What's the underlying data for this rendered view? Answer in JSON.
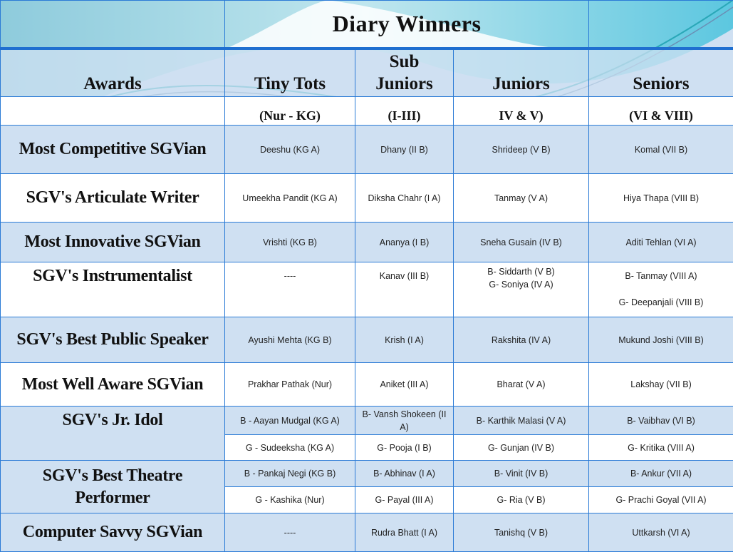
{
  "title": "Diary Winners",
  "colors": {
    "row_alt": "#cfe0f2",
    "border": "#2b7bd6",
    "wave": "#5cc7e0"
  },
  "headers": {
    "awards": "Awards",
    "tiny_tots": "Tiny Tots",
    "sub_juniors_1": "Sub",
    "sub_juniors_2": "Juniors",
    "juniors": "Juniors",
    "seniors": "Seniors"
  },
  "classes": {
    "tiny_tots": "(Nur - KG)",
    "sub_juniors": "(I-III)",
    "juniors": "IV & V)",
    "seniors": "(VI & VIII)"
  },
  "rows": [
    {
      "award": "Most Competitive SGVian",
      "tiny": "Deeshu (KG A)",
      "sub": "Dhany (II B)",
      "jun": "Shrideep (V B)",
      "sen": "Komal (VII B)"
    },
    {
      "award": "SGV's Articulate Writer",
      "tiny": "Umeekha Pandit (KG A)",
      "sub": "Diksha Chahr (I A)",
      "jun": "Tanmay (V A)",
      "sen": "Hiya Thapa (VIII B)"
    },
    {
      "award": "Most Innovative SGVian",
      "tiny": "Vrishti (KG B)",
      "sub": "Ananya (I B)",
      "jun": "Sneha Gusain (IV B)",
      "sen": "Aditi Tehlan (VI A)"
    },
    {
      "award": "SGV's Instrumentalist",
      "tiny": "----",
      "sub": "Kanav (III B)",
      "jun": "B- Siddarth (V B)",
      "jun2": "G- Soniya (IV A)",
      "sen": "B- Tanmay (VIII A)",
      "sen2": "G- Deepanjali (VIII B)"
    },
    {
      "award": "SGV's Best Public Speaker",
      "tiny": "Ayushi Mehta (KG B)",
      "sub": "Krish (I A)",
      "jun": "Rakshita (IV A)",
      "sen": "Mukund Joshi (VIII B)"
    },
    {
      "award": "Most Well Aware SGVian",
      "tiny": "Prakhar Pathak (Nur)",
      "sub": "Aniket (III A)",
      "jun": "Bharat (V A)",
      "sen": "Lakshay (VII B)"
    },
    {
      "award": "SGV's Jr. Idol",
      "tiny": "B - Aayan Mudgal (KG A)",
      "sub": "B- Vansh Shokeen (II A)",
      "jun": "B- Karthik Malasi (V A)",
      "sen": "B- Vaibhav (VI B)",
      "tiny2": "G - Sudeeksha (KG A)",
      "sub2": "G- Pooja (I B)",
      "jun2": "G- Gunjan (IV B)",
      "sen2": "G- Kritika (VIII A)"
    },
    {
      "award": "SGV's Best Theatre Performer",
      "tiny": "B - Pankaj Negi (KG B)",
      "sub": "B- Abhinav (I A)",
      "jun": "B- Vinit (IV B)",
      "sen": "B- Ankur (VII A)",
      "tiny2": "G - Kashika (Nur)",
      "sub2": "G- Payal (III A)",
      "jun2": "G- Ria (V B)",
      "sen2": "G- Prachi Goyal (VII A)"
    },
    {
      "award": "Computer Savvy SGVian",
      "tiny": "----",
      "sub": "Rudra Bhatt (I A)",
      "jun": "Tanishq (V B)",
      "sen": "Uttkarsh (VI A)"
    }
  ]
}
